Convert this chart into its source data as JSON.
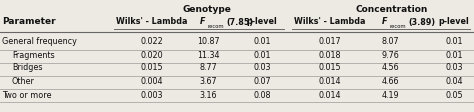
{
  "parameters": [
    "General frequency",
    "Fragments",
    "Bridges",
    "Other",
    "Two or more"
  ],
  "parameter_indent": [
    false,
    true,
    true,
    true,
    false
  ],
  "genotype": {
    "header": "Genotype",
    "wilks_lambda": [
      "0.022",
      "0.020",
      "0.015",
      "0.004",
      "0.003"
    ],
    "f_value": [
      "10.87",
      "11.34",
      "8.77",
      "3.67",
      "3.16"
    ],
    "f_label": "F  (7.85)",
    "p_level": [
      "0.01",
      "0.01",
      "0.03",
      "0.07",
      "0.08"
    ]
  },
  "concentration": {
    "header": "Concentration",
    "wilks_lambda": [
      "0.017",
      "0.018",
      "0.015",
      "0.014",
      "0.014"
    ],
    "f_value": [
      "8.07",
      "9.76",
      "4.56",
      "4.66",
      "4.19"
    ],
    "f_label": "F  (3.89)",
    "p_level": [
      "0.01",
      "0.01",
      "0.03",
      "0.04",
      "0.05"
    ]
  },
  "col_header": "Parameter",
  "wilks_col_label": "Wilks' - Lambda",
  "p_level_label": "p-level",
  "bg_color": "#ede9e3",
  "line_color": "#666666",
  "text_color": "#111111",
  "figsize": [
    4.74,
    1.12
  ],
  "dpi": 100,
  "fontsize": 5.8,
  "header_fontsize": 6.5
}
